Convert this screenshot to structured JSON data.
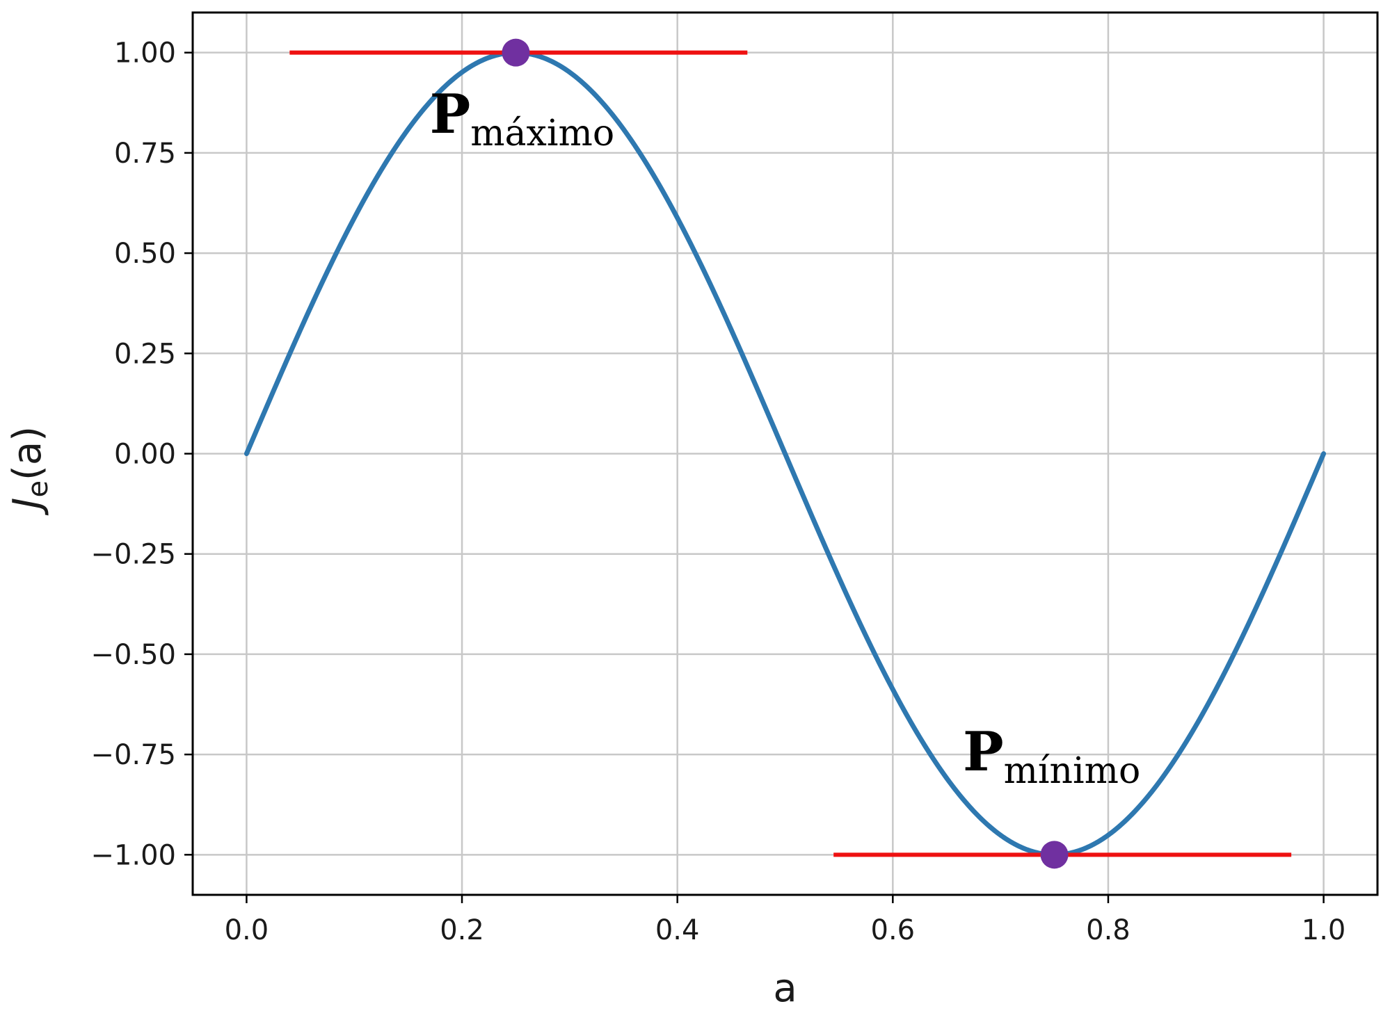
{
  "chart_data": {
    "type": "line",
    "title": "",
    "xlabel": "a",
    "ylabel_main": "J",
    "ylabel_sub": "e",
    "ylabel_arg": "(a)",
    "xlim": [
      -0.05,
      1.05
    ],
    "ylim": [
      -1.1,
      1.1
    ],
    "grid": true,
    "x_ticks": [
      "0.0",
      "0.2",
      "0.4",
      "0.6",
      "0.8",
      "1.0"
    ],
    "x_tick_values": [
      0.0,
      0.2,
      0.4,
      0.6,
      0.8,
      1.0
    ],
    "y_ticks": [
      "1.00",
      "0.75",
      "0.50",
      "0.25",
      "0.00",
      "−0.25",
      "−0.50",
      "−0.75",
      "−1.00"
    ],
    "y_tick_values": [
      1.0,
      0.75,
      0.5,
      0.25,
      0.0,
      -0.25,
      -0.5,
      -0.75,
      -1.0
    ],
    "series": [
      {
        "function": "sin(2*pi*a)",
        "x_range": [
          0.0,
          1.0
        ],
        "color": "#2e78b0",
        "points": [
          [
            0.0,
            0.0
          ],
          [
            0.125,
            0.707
          ],
          [
            0.25,
            1.0
          ],
          [
            0.375,
            0.707
          ],
          [
            0.5,
            0.0
          ],
          [
            0.625,
            -0.707
          ],
          [
            0.75,
            -1.0
          ],
          [
            0.875,
            -0.707
          ],
          [
            1.0,
            0.0
          ]
        ]
      }
    ],
    "tangent_lines": [
      {
        "x": [
          0.04,
          0.465
        ],
        "y": 1.0,
        "color": "#ee1111"
      },
      {
        "x": [
          0.545,
          0.97
        ],
        "y": -1.0,
        "color": "#ee1111"
      }
    ],
    "markers": [
      {
        "x": 0.25,
        "y": 1.0,
        "color": "#7030a0"
      },
      {
        "x": 0.75,
        "y": -1.0,
        "color": "#7030a0"
      }
    ],
    "annotations": [
      {
        "main": "P",
        "sub": "máximo",
        "x": 0.17,
        "y": 0.8
      },
      {
        "main": "P",
        "sub": "mínimo",
        "x": 0.665,
        "y": -0.79
      }
    ]
  }
}
